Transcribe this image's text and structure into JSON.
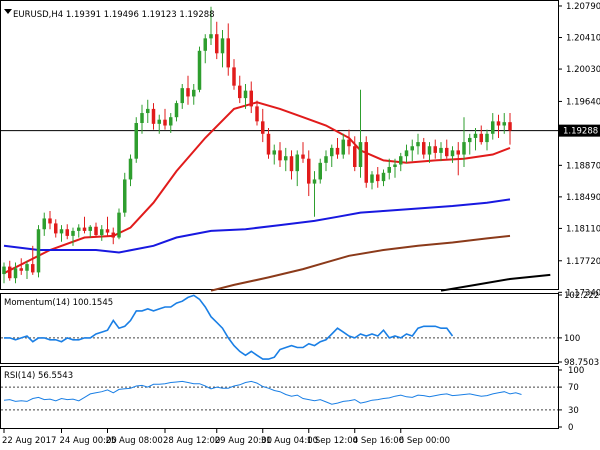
{
  "chart_data": [
    {
      "type": "candlestick",
      "title": "EURUSD,H4  1.19391 1.19496 1.19123 1.19288",
      "ylim": [
        1.1738,
        1.2085
      ],
      "y_ticks": [
        "1.20790",
        "1.20410",
        "1.20030",
        "1.19640",
        "1.19288",
        "1.18870",
        "1.18490",
        "1.18110",
        "1.17720",
        "1.17340"
      ],
      "y_tick_values": [
        1.2079,
        1.2041,
        1.2003,
        1.1964,
        1.19288,
        1.1887,
        1.1849,
        1.1811,
        1.1772,
        1.1734
      ],
      "current_price": 1.19288,
      "current_price_label": "1.19288",
      "candles": [
        [
          1.1756,
          1.177,
          1.1745,
          1.1765
        ],
        [
          1.1765,
          1.1772,
          1.1748,
          1.1751
        ],
        [
          1.1751,
          1.177,
          1.1745,
          1.1763
        ],
        [
          1.1763,
          1.1775,
          1.1755,
          1.176
        ],
        [
          1.176,
          1.1772,
          1.175,
          1.1768
        ],
        [
          1.1768,
          1.179,
          1.1755,
          1.1758
        ],
        [
          1.1758,
          1.1815,
          1.1752,
          1.181
        ],
        [
          1.181,
          1.183,
          1.1802,
          1.1823
        ],
        [
          1.1823,
          1.1832,
          1.181,
          1.1817
        ],
        [
          1.1817,
          1.1822,
          1.18,
          1.1805
        ],
        [
          1.1805,
          1.1815,
          1.1795,
          1.181
        ],
        [
          1.181,
          1.1816,
          1.1798,
          1.1802
        ],
        [
          1.1802,
          1.1812,
          1.179,
          1.1808
        ],
        [
          1.1808,
          1.1816,
          1.18,
          1.1812
        ],
        [
          1.1812,
          1.1825,
          1.1805,
          1.1808
        ],
        [
          1.1808,
          1.1815,
          1.18,
          1.1813
        ],
        [
          1.1813,
          1.1818,
          1.18,
          1.1803
        ],
        [
          1.1803,
          1.1815,
          1.1796,
          1.181
        ],
        [
          1.181,
          1.1825,
          1.1802,
          1.1806
        ],
        [
          1.1806,
          1.1812,
          1.1792,
          1.18
        ],
        [
          1.18,
          1.1835,
          1.1798,
          1.183
        ],
        [
          1.183,
          1.1878,
          1.1825,
          1.187
        ],
        [
          1.187,
          1.19,
          1.1862,
          1.1895
        ],
        [
          1.1895,
          1.1945,
          1.189,
          1.1938
        ],
        [
          1.1938,
          1.196,
          1.1925,
          1.195
        ],
        [
          1.195,
          1.1966,
          1.1938,
          1.1955
        ],
        [
          1.1955,
          1.1962,
          1.193,
          1.1937
        ],
        [
          1.1937,
          1.1948,
          1.1925,
          1.1942
        ],
        [
          1.1942,
          1.1955,
          1.193,
          1.1935
        ],
        [
          1.1935,
          1.195,
          1.1926,
          1.1945
        ],
        [
          1.1945,
          1.1965,
          1.194,
          1.1962
        ],
        [
          1.1962,
          1.1985,
          1.1955,
          1.198
        ],
        [
          1.198,
          1.1995,
          1.196,
          1.197
        ],
        [
          1.197,
          1.1985,
          1.196,
          1.1978
        ],
        [
          1.1978,
          1.203,
          1.1975,
          1.2025
        ],
        [
          1.2025,
          1.2045,
          1.201,
          1.204
        ],
        [
          1.204,
          1.2078,
          1.2032,
          1.2045
        ],
        [
          1.2045,
          1.206,
          1.2015,
          1.2022
        ],
        [
          1.2022,
          1.205,
          1.2005,
          1.204
        ],
        [
          1.204,
          1.2058,
          1.1995,
          1.2005
        ],
        [
          1.2005,
          1.2015,
          1.1978,
          1.1983
        ],
        [
          1.1983,
          1.1995,
          1.1962,
          1.1968
        ],
        [
          1.1968,
          1.1985,
          1.1955,
          1.1977
        ],
        [
          1.1977,
          1.1988,
          1.195,
          1.1958
        ],
        [
          1.1958,
          1.1965,
          1.1935,
          1.194
        ],
        [
          1.194,
          1.1955,
          1.1915,
          1.1925
        ],
        [
          1.1925,
          1.1932,
          1.1895,
          1.19
        ],
        [
          1.19,
          1.1912,
          1.1888,
          1.1905
        ],
        [
          1.1905,
          1.1915,
          1.1885,
          1.1893
        ],
        [
          1.1893,
          1.1908,
          1.188,
          1.1898
        ],
        [
          1.1898,
          1.1905,
          1.187,
          1.188
        ],
        [
          1.188,
          1.1905,
          1.1862,
          1.19
        ],
        [
          1.19,
          1.1915,
          1.189,
          1.1895
        ],
        [
          1.1895,
          1.1905,
          1.185,
          1.1865
        ],
        [
          1.1865,
          1.188,
          1.1825,
          1.187
        ],
        [
          1.187,
          1.1895,
          1.1865,
          1.189
        ],
        [
          1.189,
          1.1905,
          1.188,
          1.1898
        ],
        [
          1.1898,
          1.1912,
          1.1885,
          1.1908
        ],
        [
          1.1908,
          1.192,
          1.1895,
          1.19
        ],
        [
          1.19,
          1.1925,
          1.1895,
          1.1918
        ],
        [
          1.1918,
          1.193,
          1.19,
          1.191
        ],
        [
          1.191,
          1.1922,
          1.188,
          1.1885
        ],
        [
          1.1885,
          1.1978,
          1.1872,
          1.1915
        ],
        [
          1.1915,
          1.1922,
          1.186,
          1.1866
        ],
        [
          1.1866,
          1.188,
          1.1858,
          1.1876
        ],
        [
          1.1876,
          1.1885,
          1.186,
          1.1868
        ],
        [
          1.1868,
          1.1882,
          1.1862,
          1.1878
        ],
        [
          1.1878,
          1.1895,
          1.187,
          1.1885
        ],
        [
          1.1885,
          1.1895,
          1.1872,
          1.1888
        ],
        [
          1.1888,
          1.1902,
          1.188,
          1.1898
        ],
        [
          1.1898,
          1.1912,
          1.189,
          1.1905
        ],
        [
          1.1905,
          1.1918,
          1.1892,
          1.191
        ],
        [
          1.191,
          1.1925,
          1.19,
          1.1915
        ],
        [
          1.1915,
          1.192,
          1.1895,
          1.19
        ],
        [
          1.19,
          1.1915,
          1.189,
          1.191
        ],
        [
          1.191,
          1.1918,
          1.1895,
          1.1902
        ],
        [
          1.1902,
          1.1915,
          1.1892,
          1.1908
        ],
        [
          1.1908,
          1.1918,
          1.1895,
          1.1898
        ],
        [
          1.1898,
          1.191,
          1.189,
          1.1905
        ],
        [
          1.1905,
          1.1915,
          1.1875,
          1.19
        ],
        [
          1.19,
          1.1945,
          1.1885,
          1.1915
        ],
        [
          1.1915,
          1.1925,
          1.19,
          1.192
        ],
        [
          1.192,
          1.1932,
          1.1905,
          1.1925
        ],
        [
          1.1925,
          1.1935,
          1.1912,
          1.1915
        ],
        [
          1.1915,
          1.193,
          1.1905,
          1.1925
        ],
        [
          1.1925,
          1.195,
          1.1918,
          1.194
        ],
        [
          1.194,
          1.1948,
          1.192,
          1.1935
        ],
        [
          1.1935,
          1.195,
          1.1925,
          1.1939
        ],
        [
          1.1939,
          1.195,
          1.1912,
          1.1929
        ]
      ],
      "moving_averages": [
        {
          "color": "#e11b1b",
          "points": [
            [
              0,
              1.1757
            ],
            [
              8,
              1.1785
            ],
            [
              14,
              1.18
            ],
            [
              19,
              1.1802
            ],
            [
              22,
              1.1812
            ],
            [
              26,
              1.1842
            ],
            [
              30,
              1.188
            ],
            [
              35,
              1.192
            ],
            [
              40,
              1.1955
            ],
            [
              44,
              1.1963
            ],
            [
              48,
              1.1955
            ],
            [
              52,
              1.1945
            ],
            [
              56,
              1.1935
            ],
            [
              60,
              1.192
            ],
            [
              62,
              1.1905
            ],
            [
              66,
              1.1893
            ],
            [
              70,
              1.189
            ],
            [
              75,
              1.1893
            ],
            [
              80,
              1.1895
            ],
            [
              85,
              1.19
            ],
            [
              88,
              1.1908
            ]
          ]
        },
        {
          "color": "#1818e0",
          "points": [
            [
              0,
              1.179
            ],
            [
              6,
              1.1785
            ],
            [
              10,
              1.1785
            ],
            [
              16,
              1.1785
            ],
            [
              20,
              1.1782
            ],
            [
              26,
              1.179
            ],
            [
              30,
              1.18
            ],
            [
              36,
              1.1808
            ],
            [
              42,
              1.181
            ],
            [
              48,
              1.1815
            ],
            [
              54,
              1.182
            ],
            [
              58,
              1.1825
            ],
            [
              62,
              1.183
            ],
            [
              66,
              1.1832
            ],
            [
              72,
              1.1835
            ],
            [
              78,
              1.1838
            ],
            [
              84,
              1.1842
            ],
            [
              88,
              1.1846
            ]
          ]
        },
        {
          "color": "#8b3a1a",
          "points": [
            [
              36,
              1.1736
            ],
            [
              40,
              1.1743
            ],
            [
              46,
              1.1752
            ],
            [
              52,
              1.1762
            ],
            [
              56,
              1.177
            ],
            [
              60,
              1.1778
            ],
            [
              66,
              1.1785
            ],
            [
              72,
              1.179
            ],
            [
              78,
              1.1794
            ],
            [
              84,
              1.1799
            ],
            [
              88,
              1.1802
            ]
          ]
        },
        {
          "color": "#000000",
          "points": [
            [
              76,
              1.1736
            ],
            [
              82,
              1.1743
            ],
            [
              88,
              1.175
            ],
            [
              95,
              1.1755
            ]
          ]
        }
      ]
    },
    {
      "type": "line",
      "title": "Momentum(14) 100.1545",
      "ylim": [
        98.7503,
        102.2221
      ],
      "y_ticks": [
        "102.2221",
        "100",
        "98.7503"
      ],
      "y_tick_values": [
        102.2221,
        100,
        98.7503
      ],
      "reference_line": 100,
      "series": [
        {
          "color": "#1a7fe5",
          "values": [
            100.0,
            100.0,
            99.9,
            100.0,
            100.1,
            99.8,
            100.0,
            100.0,
            99.9,
            99.9,
            99.8,
            100.0,
            99.9,
            99.9,
            100.0,
            100.0,
            100.2,
            100.3,
            100.4,
            100.9,
            100.5,
            100.6,
            100.9,
            101.4,
            101.4,
            101.5,
            101.4,
            101.5,
            101.6,
            101.6,
            101.8,
            101.9,
            102.1,
            102.2,
            102.0,
            101.6,
            101.1,
            100.8,
            100.5,
            100.0,
            99.6,
            99.3,
            99.1,
            99.3,
            99.1,
            98.9,
            98.9,
            99.0,
            99.4,
            99.5,
            99.6,
            99.5,
            99.5,
            99.7,
            99.6,
            99.8,
            99.9,
            100.2,
            100.5,
            100.3,
            100.1,
            100.0,
            100.2,
            100.1,
            100.2,
            100.1,
            100.4,
            100.0,
            100.1,
            100.0,
            100.2,
            100.1,
            100.5,
            100.6,
            100.6,
            100.6,
            100.5,
            100.5,
            100.1
          ]
        }
      ]
    },
    {
      "type": "line",
      "title": "RSI(14) 56.5543",
      "ylim": [
        0,
        100
      ],
      "y_ticks": [
        "100",
        "70",
        "30",
        "0"
      ],
      "y_tick_values": [
        100,
        70,
        30,
        0
      ],
      "levels": [
        70,
        30
      ],
      "series": [
        {
          "color": "#1a7fe5",
          "values": [
            47,
            48,
            45,
            46,
            45,
            50,
            52,
            48,
            49,
            46,
            50,
            48,
            49,
            46,
            52,
            58,
            60,
            62,
            65,
            60,
            66,
            67,
            68,
            72,
            73,
            70,
            75,
            75,
            76,
            78,
            79,
            80,
            78,
            76,
            76,
            72,
            67,
            70,
            68,
            68,
            72,
            74,
            78,
            80,
            77,
            71,
            68,
            64,
            62,
            57,
            54,
            56,
            50,
            48,
            46,
            48,
            44,
            40,
            42,
            45,
            46,
            48,
            42,
            44,
            47,
            48,
            50,
            51,
            54,
            56,
            53,
            52,
            56,
            55,
            53,
            55,
            57,
            58,
            55,
            56,
            57,
            58,
            56,
            54,
            55,
            58,
            60,
            62,
            58,
            60,
            57
          ]
        }
      ]
    }
  ],
  "x_axis_labels": [
    {
      "label": "22 Aug 2017",
      "bar": 0
    },
    {
      "label": "24 Aug 00:00",
      "bar": 10
    },
    {
      "label": "25 Aug 08:00",
      "bar": 18
    },
    {
      "label": "28 Aug 12:00",
      "bar": 28
    },
    {
      "label": "29 Aug 20:00",
      "bar": 37
    },
    {
      "label": "31 Aug 04:00",
      "bar": 45
    },
    {
      "label": "1 Sep 12:00",
      "bar": 53
    },
    {
      "label": "4 Sep 16:00",
      "bar": 61
    },
    {
      "label": "6 Sep 00:00",
      "bar": 69
    }
  ],
  "colors": {
    "bull": "#2e9e2e",
    "bear": "#e11b1b",
    "grid": "#000000",
    "panel_border": "#000000"
  }
}
